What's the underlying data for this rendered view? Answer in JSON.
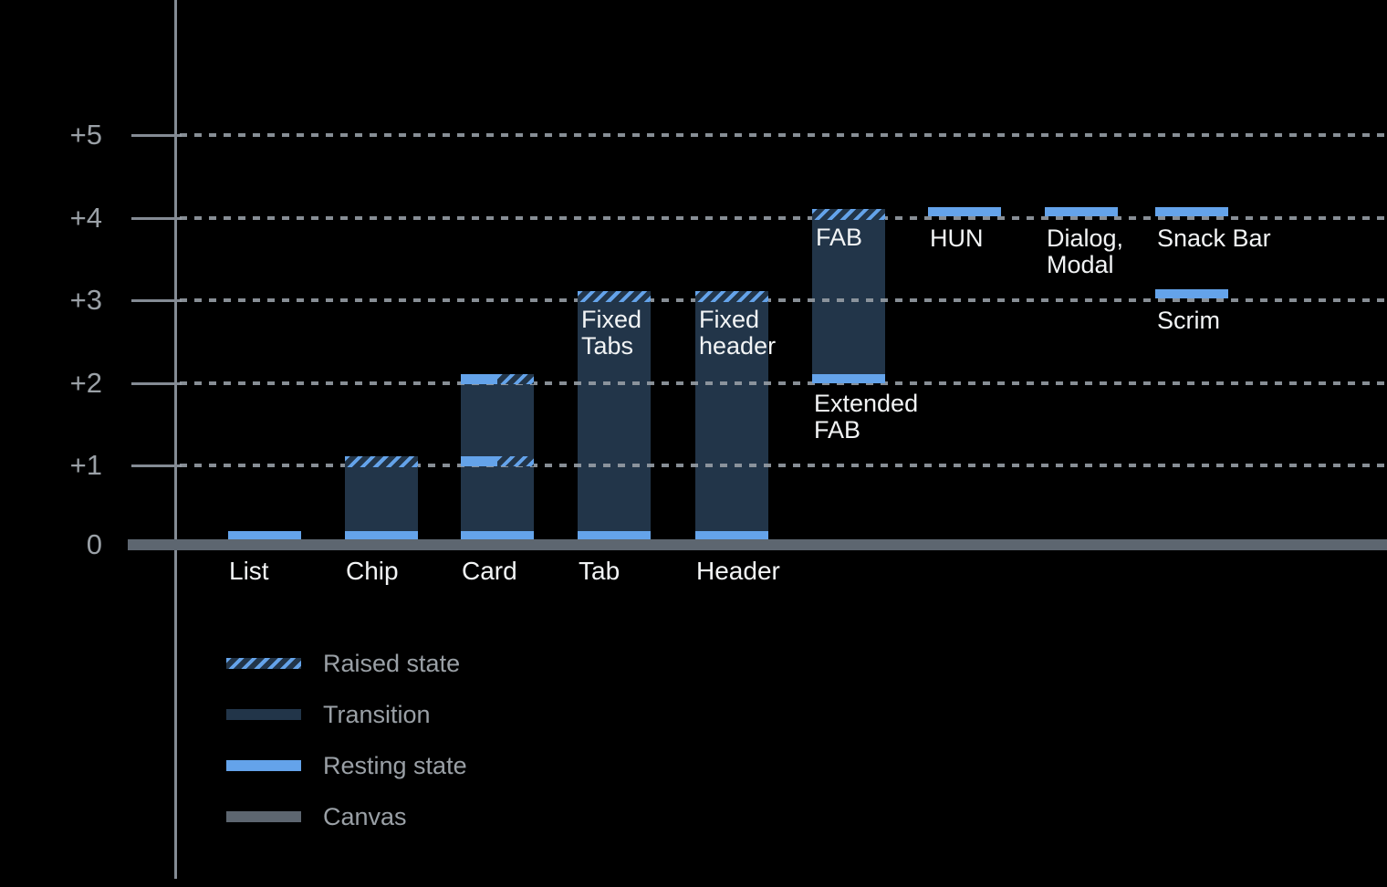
{
  "chart_data": {
    "type": "bar",
    "title": "",
    "description": "Elevation diagram of UI components, resting and raised states above canvas",
    "background": "#000000",
    "y_axis": {
      "ticks": [
        {
          "label": "+5",
          "value": 5
        },
        {
          "label": "+4",
          "value": 4
        },
        {
          "label": "+3",
          "value": 3
        },
        {
          "label": "+2",
          "value": 2
        },
        {
          "label": "+1",
          "value": 1
        },
        {
          "label": "0",
          "value": 0
        }
      ],
      "range": [
        0,
        5
      ],
      "gridlines": "dotted"
    },
    "colors": {
      "resting_state": "#64A3EA",
      "transition": "#223549",
      "canvas": "#5D6670",
      "axis_line": "#848B94",
      "grid_dots": "#969DA5",
      "axis_text": "#9AA0A6",
      "label_text": "#F2F4F5"
    },
    "items": [
      {
        "name": "list",
        "col": 0,
        "axis_label": "List",
        "resting": [
          0
        ]
      },
      {
        "name": "chip",
        "col": 1,
        "axis_label": "Chip",
        "bar": [
          0,
          1
        ],
        "resting": [
          0
        ],
        "raised": [
          1
        ]
      },
      {
        "name": "card",
        "col": 2,
        "axis_label": "Card",
        "bar": [
          0,
          2
        ],
        "resting": [
          0
        ],
        "resting_and_raised": [
          1,
          2
        ]
      },
      {
        "name": "tab",
        "col": 3,
        "axis_label": "Tab",
        "bar": [
          0,
          3
        ],
        "resting": [
          0
        ],
        "raised": [
          3
        ],
        "inside_label": "Fixed Tabs",
        "inside_label_lines": [
          "Fixed",
          "Tabs"
        ]
      },
      {
        "name": "header",
        "col": 4,
        "axis_label": "Header",
        "bar": [
          0,
          3
        ],
        "resting": [
          0
        ],
        "raised": [
          3
        ],
        "inside_label": "Fixed header",
        "inside_label_lines": [
          "Fixed",
          "header"
        ]
      },
      {
        "name": "fab",
        "col": 5,
        "bar": [
          2,
          4
        ],
        "resting": [
          2
        ],
        "raised": [
          4
        ],
        "inside_label": "FAB",
        "inside_label_lines": [
          "FAB"
        ],
        "below_label": "Extended FAB",
        "below_label_lines": [
          "Extended",
          "FAB"
        ]
      },
      {
        "name": "hun",
        "col": 6,
        "resting": [
          4
        ],
        "below_label": "HUN",
        "below_label_lines": [
          "HUN"
        ]
      },
      {
        "name": "dialog-modal",
        "col": 7,
        "resting": [
          4
        ],
        "below_label": "Dialog, Modal",
        "below_label_lines": [
          "Dialog,",
          "Modal"
        ]
      },
      {
        "name": "snack-bar",
        "col": 8,
        "resting": [
          4
        ],
        "below_label": "Snack Bar",
        "below_label_lines": [
          "Snack Bar"
        ]
      },
      {
        "name": "scrim",
        "col": 8,
        "resting": [
          3
        ],
        "below_label": "Scrim",
        "below_label_lines": [
          "Scrim"
        ]
      }
    ],
    "legend": [
      {
        "label": "Raised state",
        "swatch": "raised-hatch"
      },
      {
        "label": "Transition",
        "swatch": "transition"
      },
      {
        "label": "Resting state",
        "swatch": "resting"
      },
      {
        "label": "Canvas",
        "swatch": "canvas"
      }
    ]
  }
}
